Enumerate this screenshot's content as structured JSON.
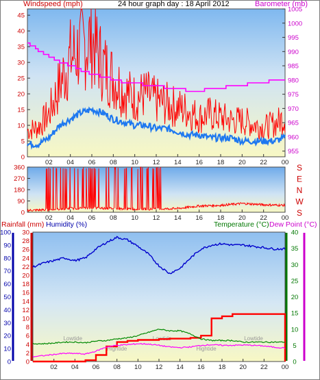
{
  "chart_data": [
    {
      "type": "line",
      "title": "24 hour graph day : 18 April 2012",
      "ylabel": "Windspeed (mph)",
      "ylabel_right": "Barometer (mb)",
      "ylim": [
        0,
        47
      ],
      "ylim_right": [
        953,
        1005
      ],
      "x_ticks": [
        "02",
        "04",
        "06",
        "08",
        "10",
        "12",
        "14",
        "16",
        "18",
        "20",
        "22",
        "00"
      ],
      "y_ticks": [
        0,
        5,
        10,
        15,
        20,
        25,
        30,
        35,
        40,
        45
      ],
      "y_ticks_right": [
        955,
        960,
        965,
        970,
        975,
        980,
        985,
        990,
        995,
        1000,
        1005
      ],
      "grid": false,
      "colors": {
        "gust": "#ff0000",
        "wind": "#1e78f0",
        "barometer": "#ff00ff"
      },
      "series": [
        {
          "name": "Gust",
          "x": [
            0.0,
            1.0,
            2.0,
            3.0,
            4.0,
            5.0,
            6.0,
            7.0,
            8.0,
            9.0,
            10.0,
            11.0,
            12.0,
            13.0,
            14.0,
            15.0,
            16.0,
            17.0,
            18.0,
            19.0,
            20.0,
            21.0,
            22.0,
            23.0,
            24.0
          ],
          "values": [
            8,
            9,
            13,
            22,
            30,
            33,
            36,
            28,
            24,
            20,
            18,
            19,
            17,
            16,
            15,
            14,
            12,
            13,
            12,
            11,
            11,
            10,
            9,
            10,
            12
          ]
        },
        {
          "name": "Wind",
          "x": [
            0.0,
            1.0,
            2.0,
            3.0,
            4.0,
            5.0,
            6.0,
            7.0,
            8.0,
            9.0,
            10.0,
            11.0,
            12.0,
            13.0,
            14.0,
            15.0,
            16.0,
            17.0,
            18.0,
            19.0,
            20.0,
            21.0,
            22.0,
            23.0,
            24.0
          ],
          "values": [
            4,
            4,
            6,
            10,
            12,
            14,
            15,
            14,
            12,
            11,
            10,
            10,
            9,
            9,
            8,
            7,
            7,
            6,
            6,
            6,
            5,
            5,
            5,
            5,
            6
          ]
        },
        {
          "name": "Barometer",
          "axis": "right",
          "x": [
            0.0,
            1.0,
            2.0,
            3.0,
            4.0,
            5.0,
            6.0,
            7.0,
            8.0,
            9.0,
            10.0,
            11.0,
            12.0,
            13.0,
            14.0,
            15.0,
            16.0,
            17.0,
            18.0,
            19.0,
            20.0,
            21.0,
            22.0,
            23.0,
            24.0
          ],
          "values": [
            993,
            990,
            988,
            986,
            985,
            983,
            982,
            981,
            980,
            979,
            979,
            978,
            978,
            977,
            977,
            976,
            976,
            977,
            977,
            978,
            978,
            979,
            979,
            980,
            980
          ]
        }
      ]
    },
    {
      "type": "line",
      "ylabel_right": "S E N W S",
      "ylim": [
        0,
        360
      ],
      "x_ticks": [
        "02",
        "04",
        "06",
        "08",
        "10",
        "12",
        "14",
        "16",
        "18",
        "20",
        "22",
        "00"
      ],
      "y_ticks": [
        0,
        90,
        180,
        270,
        360
      ],
      "compass_labels": [
        "S",
        "E",
        "N",
        "W",
        "S"
      ],
      "grid": false,
      "colors": {
        "direction": "#ff0000"
      },
      "series": [
        {
          "name": "Direction",
          "x": [
            0,
            2,
            4,
            6,
            8,
            10,
            12,
            14,
            16,
            18,
            20,
            22,
            24
          ],
          "values": [
            15,
            20,
            30,
            35,
            30,
            25,
            25,
            30,
            50,
            55,
            70,
            60,
            55
          ]
        }
      ]
    },
    {
      "type": "line",
      "ylabel_left_outer": "Rainfall (mm)",
      "ylabel_left_inner": "Humidity (%)",
      "ylabel_right_inner": "Temperature (°C)",
      "ylabel_right_outer": "Dew Point (°C)",
      "rain_ylim": [
        0,
        30
      ],
      "humidity_ylim": [
        0,
        100
      ],
      "temp_ylim": [
        0,
        40
      ],
      "rain_ticks": [
        0,
        2,
        4,
        6,
        8,
        10,
        12,
        14,
        16,
        18,
        20,
        22,
        24,
        26,
        28,
        30
      ],
      "humidity_ticks": [
        0,
        10,
        20,
        30,
        40,
        50,
        60,
        70,
        80,
        90,
        100
      ],
      "temp_ticks": [
        0,
        5,
        10,
        15,
        20,
        25,
        30,
        35,
        40
      ],
      "x_ticks": [
        "02",
        "04",
        "06",
        "08",
        "10",
        "12",
        "14",
        "16",
        "18",
        "20",
        "22",
        "00"
      ],
      "annotations": [
        "Lowtide",
        "Hightide",
        "Lowtide",
        "Hightide",
        "Lowtide"
      ],
      "grid": false,
      "colors": {
        "humidity": "#0000cc",
        "rain": "#ff0000",
        "temperature": "#008800",
        "dewpoint": "#ff00ff"
      },
      "series": [
        {
          "name": "Humidity",
          "axis": "humidity",
          "x": [
            0,
            1,
            2,
            3,
            4,
            5,
            6,
            7,
            8,
            9,
            10,
            11,
            12,
            13,
            14,
            15,
            16,
            17,
            18,
            19,
            20,
            21,
            22,
            23,
            24
          ],
          "values": [
            73,
            76,
            78,
            80,
            78,
            80,
            87,
            92,
            96,
            94,
            89,
            83,
            74,
            68,
            72,
            80,
            87,
            90,
            91,
            90,
            90,
            89,
            88,
            87,
            87
          ]
        },
        {
          "name": "Rainfall",
          "axis": "rain",
          "x": [
            0,
            1,
            2,
            3,
            4,
            5,
            6,
            7,
            8,
            9,
            10,
            11,
            12,
            13,
            14,
            15,
            16,
            17,
            18,
            19,
            20,
            21,
            22,
            23,
            24
          ],
          "values": [
            0,
            0,
            0,
            0,
            0,
            0.3,
            1.5,
            3.5,
            4.5,
            4.8,
            5,
            5,
            5.2,
            5.3,
            5.3,
            5.5,
            6,
            10,
            10.5,
            11,
            11,
            11,
            11,
            11,
            0
          ]
        },
        {
          "name": "Temperature",
          "axis": "temp",
          "x": [
            0,
            1,
            2,
            3,
            4,
            5,
            6,
            7,
            8,
            9,
            10,
            11,
            12,
            13,
            14,
            15,
            16,
            17,
            18,
            19,
            20,
            21,
            22,
            23,
            24
          ],
          "values": [
            5.5,
            5.5,
            5.7,
            6,
            6,
            5.8,
            6.3,
            6.5,
            7,
            7.3,
            8,
            9,
            10,
            9.5,
            9.5,
            8.5,
            7,
            6.5,
            6.5,
            6.5,
            6,
            6,
            6,
            6,
            6
          ]
        },
        {
          "name": "Dew Point",
          "axis": "temp",
          "x": [
            0,
            1,
            2,
            3,
            4,
            5,
            6,
            7,
            8,
            9,
            10,
            11,
            12,
            13,
            14,
            15,
            16,
            17,
            18,
            19,
            20,
            21,
            22,
            23,
            24
          ],
          "values": [
            1.5,
            1.8,
            2.2,
            2.5,
            2.5,
            2.3,
            3.2,
            4.5,
            5,
            5.2,
            5.5,
            5.4,
            5,
            4.5,
            4.3,
            4.5,
            5,
            5.2,
            5,
            5,
            5.1,
            5,
            4.8,
            4.4,
            4.2
          ]
        }
      ]
    }
  ]
}
